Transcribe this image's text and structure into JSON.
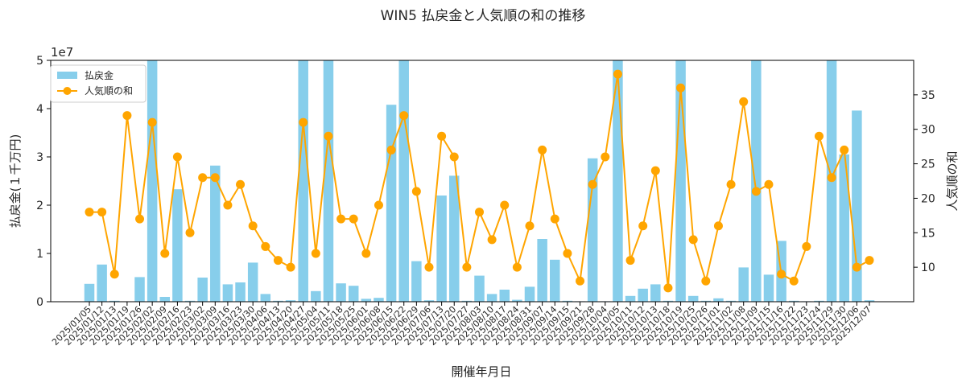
{
  "chart_data": {
    "type": "bar+line",
    "title": "WIN5 払戻金と人気順の和の推移",
    "xlabel": "開催年月日",
    "ylabel_left": "払戻金(１千万円)",
    "ylabel_right": "人気順の和",
    "left_axis_multiplier": "1e7",
    "ylim_left": [
      0,
      50000000
    ],
    "yticks_left": [
      "0",
      "1",
      "2",
      "3",
      "4",
      "5"
    ],
    "ylim_right": [
      5,
      40
    ],
    "yticks_right": [
      "10",
      "15",
      "20",
      "25",
      "30",
      "35"
    ],
    "legend_position": "top-left",
    "grid": false,
    "categories": [
      "2025/01/05",
      "2025/01/12",
      "2025/01/13",
      "2025/01/19",
      "2025/01/26",
      "2025/02/02",
      "2025/02/09",
      "2025/02/16",
      "2025/02/23",
      "2025/03/02",
      "2025/03/09",
      "2025/03/16",
      "2025/03/23",
      "2025/03/30",
      "2025/04/06",
      "2025/04/13",
      "2025/04/20",
      "2025/04/27",
      "2025/05/04",
      "2025/05/11",
      "2025/05/18",
      "2025/05/25",
      "2025/06/01",
      "2025/06/08",
      "2025/06/15",
      "2025/06/22",
      "2025/06/29",
      "2025/07/06",
      "2025/07/13",
      "2025/07/20",
      "2025/07/27",
      "2025/08/03",
      "2025/08/10",
      "2025/08/17",
      "2025/08/24",
      "2025/08/31",
      "2025/09/07",
      "2025/09/14",
      "2025/09/15",
      "2025/09/21",
      "2025/09/28",
      "2025/10/04",
      "2025/10/05",
      "2025/10/11",
      "2025/10/12",
      "2025/10/13",
      "2025/10/18",
      "2025/10/19",
      "2025/10/25",
      "2025/10/26",
      "2025/11/01",
      "2025/11/02",
      "2025/11/08",
      "2025/11/09",
      "2025/11/15",
      "2025/11/16",
      "2025/11/22",
      "2025/11/23",
      "2025/11/24",
      "2025/11/29",
      "2025/11/30",
      "2025/12/06",
      "2025/12/07"
    ],
    "series": [
      {
        "name": "払戻金",
        "type": "bar",
        "axis": "left",
        "color": "#87CEEB",
        "values": [
          3700000,
          7700000,
          200000,
          0,
          5100000,
          50000000,
          1000000,
          23300000,
          200000,
          5000000,
          28200000,
          3600000,
          4000000,
          8100000,
          1600000,
          200000,
          300000,
          50000000,
          2200000,
          50000000,
          3800000,
          3300000,
          600000,
          800000,
          40800000,
          50000000,
          8400000,
          300000,
          22000000,
          26100000,
          200000,
          5400000,
          1600000,
          2500000,
          400000,
          3100000,
          13000000,
          8700000,
          200000,
          100000,
          29700000,
          100000,
          50000000,
          1200000,
          2700000,
          3600000,
          200000,
          50000000,
          1200000,
          200000,
          700000,
          200000,
          7100000,
          50000000,
          5600000,
          12600000,
          200000,
          100000,
          200000,
          50000000,
          30500000,
          39600000,
          300000
        ]
      },
      {
        "name": "人気順の和",
        "type": "line",
        "axis": "right",
        "color": "#FFA500",
        "values": [
          18,
          18,
          9,
          32,
          17,
          31,
          12,
          26,
          15,
          23,
          23,
          19,
          22,
          16,
          13,
          11,
          10,
          31,
          12,
          29,
          17,
          17,
          12,
          19,
          27,
          32,
          21,
          10,
          29,
          26,
          10,
          18,
          14,
          19,
          10,
          16,
          27,
          17,
          12,
          8,
          22,
          26,
          38,
          11,
          16,
          24,
          7,
          36,
          14,
          8,
          16,
          22,
          34,
          21,
          22,
          9,
          8,
          13,
          29,
          23,
          27,
          10,
          11
        ]
      }
    ]
  }
}
